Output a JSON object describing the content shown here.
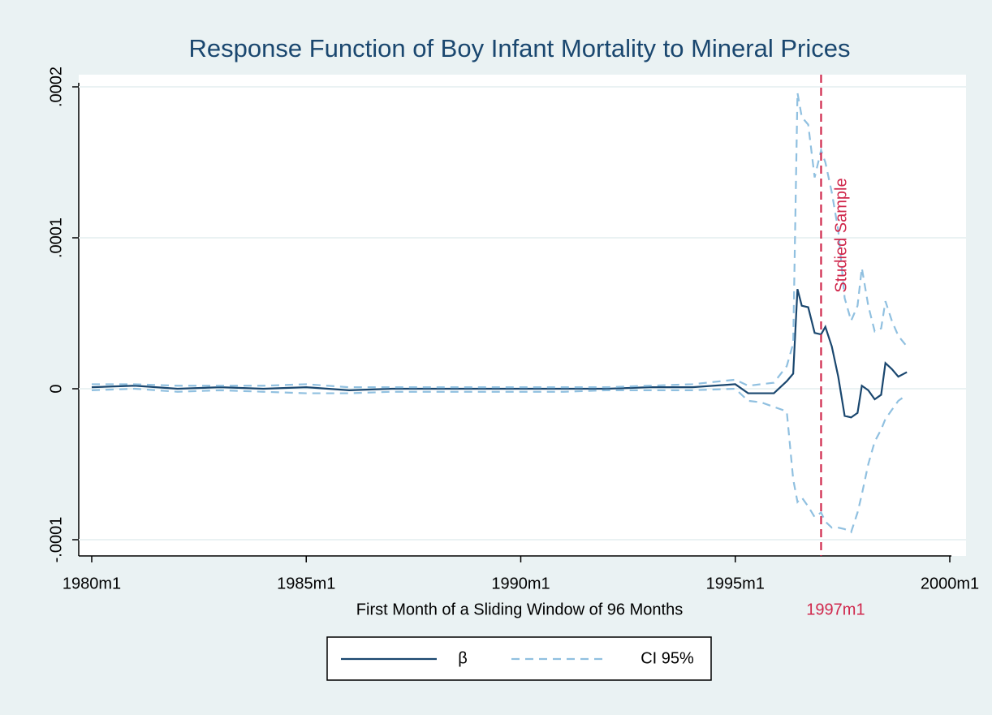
{
  "chart_data": {
    "type": "line",
    "title": "Response Function of Boy Infant Mortality to Mineral Prices",
    "x_label": "First Month of a Sliding Window of 96 Months",
    "x": [
      1980,
      1981,
      1982,
      1983,
      1984,
      1985,
      1986,
      1987,
      1988,
      1989,
      1990,
      1991,
      1992,
      1993,
      1994,
      1995,
      1995.3,
      1995.6,
      1995.9,
      1996.2,
      1996.35,
      1996.45,
      1996.55,
      1996.7,
      1996.85,
      1997.0,
      1997.1,
      1997.25,
      1997.4,
      1997.55,
      1997.7,
      1997.85,
      1997.95,
      1998.1,
      1998.25,
      1998.4,
      1998.5,
      1998.65,
      1998.8,
      1999.0
    ],
    "series": [
      {
        "name": "β",
        "color": "#1a476f",
        "dashed": false,
        "values": [
          1e-06,
          2e-06,
          0,
          1e-06,
          0,
          1e-06,
          -1e-06,
          0,
          0,
          0,
          0,
          0,
          0,
          1e-06,
          1e-06,
          3e-06,
          -3e-06,
          -3e-06,
          -3e-06,
          5e-06,
          1e-05,
          6.6e-05,
          5.5e-05,
          5.4e-05,
          3.7e-05,
          3.6e-05,
          4.1e-05,
          2.8e-05,
          8e-06,
          -1.8e-05,
          -1.9e-05,
          -1.6e-05,
          2e-06,
          -1e-06,
          -7e-06,
          -4e-06,
          1.7e-05,
          1.3e-05,
          8e-06,
          1.1e-05
        ]
      },
      {
        "name": "CI 95%",
        "color": "#90c0e0",
        "dashed": true,
        "upper": [
          3e-06,
          3e-06,
          2e-06,
          2e-06,
          2e-06,
          3e-06,
          1e-06,
          1e-06,
          1e-06,
          1e-06,
          1e-06,
          1e-06,
          1e-06,
          2e-06,
          3e-06,
          6e-06,
          2e-06,
          3e-06,
          4e-06,
          1.5e-05,
          3e-05,
          0.000196,
          0.00018,
          0.000175,
          0.00014,
          0.000158,
          0.00015,
          0.00013,
          0.000105,
          6e-05,
          4.5e-05,
          5.5e-05,
          8e-05,
          5.5e-05,
          3.8e-05,
          4e-05,
          5.8e-05,
          4.5e-05,
          3.5e-05,
          2.8e-05
        ],
        "lower": [
          -1e-06,
          0,
          -2e-06,
          -1e-06,
          -2e-06,
          -3e-06,
          -3e-06,
          -2e-06,
          -2e-06,
          -2e-06,
          -2e-06,
          -2e-06,
          -1e-06,
          -1e-06,
          -1e-06,
          0,
          -8e-06,
          -9e-06,
          -1.2e-05,
          -1.5e-05,
          -6e-05,
          -7.5e-05,
          -7.2e-05,
          -7.8e-05,
          -8.5e-05,
          -8.2e-05,
          -8.8e-05,
          -9.2e-05,
          -9.2e-05,
          -9.3e-05,
          -9.5e-05,
          -8.2e-05,
          -7e-05,
          -5e-05,
          -3.5e-05,
          -2.7e-05,
          -2e-05,
          -1.4e-05,
          -8e-06,
          -4e-06
        ]
      }
    ],
    "xlim": [
      1980,
      2000
    ],
    "xticks": [
      {
        "value": 1980,
        "label": "1980m1"
      },
      {
        "value": 1985,
        "label": "1985m1"
      },
      {
        "value": 1990,
        "label": "1990m1"
      },
      {
        "value": 1995,
        "label": "1995m1"
      },
      {
        "value": 2000,
        "label": "2000m1"
      }
    ],
    "ylim": [
      -0.0001,
      0.0002
    ],
    "yticks": [
      {
        "value": -0.0001,
        "label": "-.0001"
      },
      0,
      {
        "value": 0.0001,
        "label": ".0001"
      },
      {
        "value": 0.0002,
        "label": ".0002"
      }
    ],
    "grid": true,
    "reference_line": {
      "x": 1997,
      "label": "1997m1",
      "annotation": "Studied Sample",
      "color": "#d0284c"
    }
  }
}
